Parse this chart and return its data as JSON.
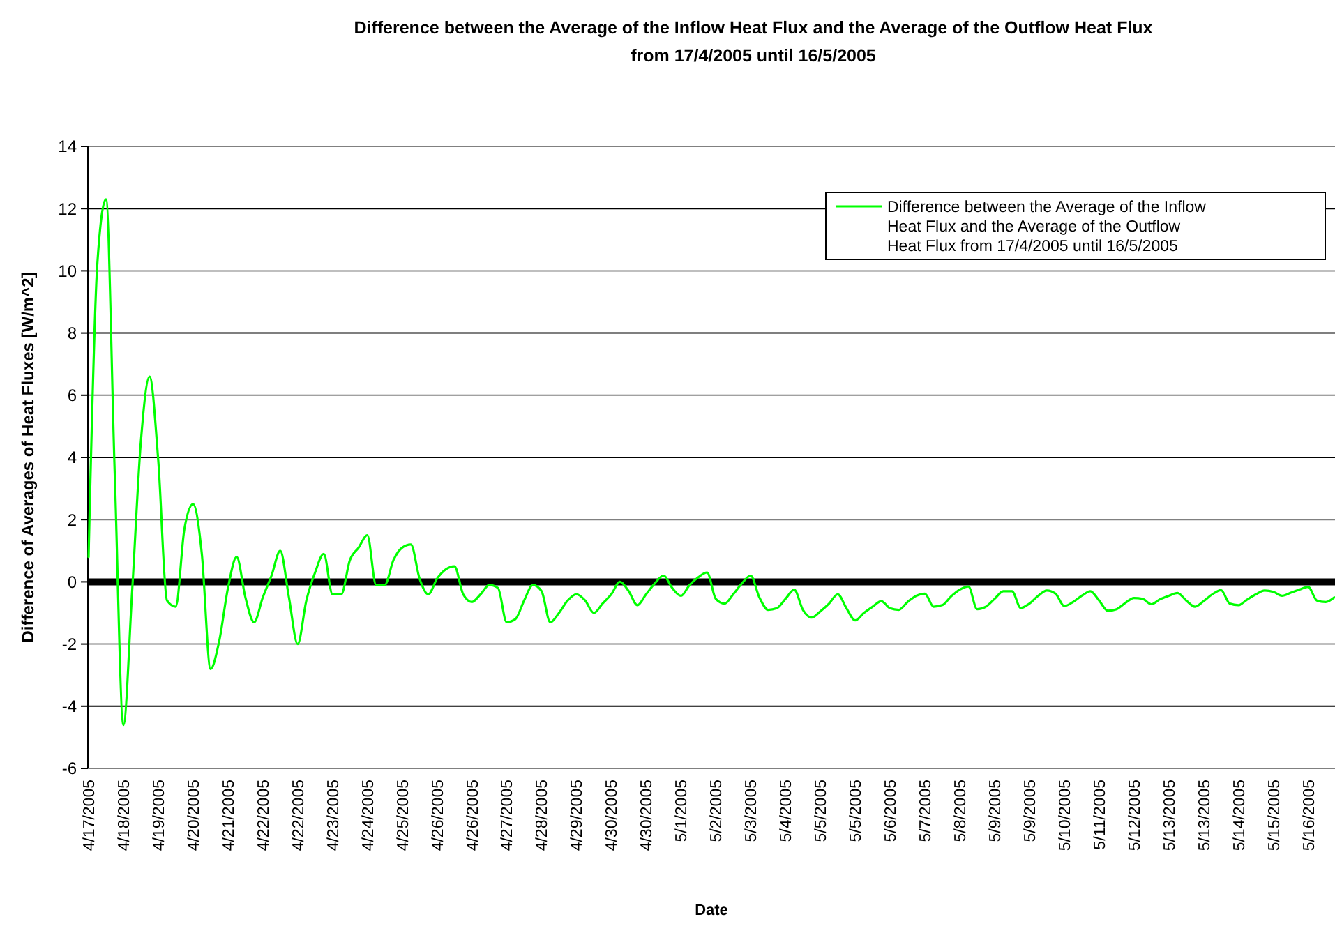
{
  "chart_data": {
    "type": "line",
    "title": "Difference between the Average of the Inflow Heat Flux and the Average of the Outflow Heat Flux from 17/4/2005 until 16/5/2005",
    "xlabel": "Date",
    "ylabel": "Difference of  Averages of Heat Fluxes [W/m^2]",
    "categories": [
      "4/17/2005",
      null,
      null,
      null,
      "4/18/2005",
      null,
      null,
      null,
      "4/19/2005",
      null,
      null,
      null,
      "4/20/2005",
      null,
      null,
      null,
      "4/21/2005",
      null,
      null,
      null,
      "4/22/2005",
      null,
      null,
      null,
      "4/22/2005",
      null,
      null,
      null,
      "4/23/2005",
      null,
      null,
      null,
      "4/24/2005",
      null,
      null,
      null,
      "4/25/2005",
      null,
      null,
      null,
      "4/26/2005",
      null,
      null,
      null,
      "4/26/2005",
      null,
      null,
      null,
      "4/27/2005",
      null,
      null,
      null,
      "4/28/2005",
      null,
      null,
      null,
      "4/29/2005",
      null,
      null,
      null,
      "4/30/2005",
      null,
      null,
      null,
      "4/30/2005",
      null,
      null,
      null,
      "5/1/2005",
      null,
      null,
      null,
      "5/2/2005",
      null,
      null,
      null,
      "5/3/2005",
      null,
      null,
      null,
      "5/4/2005",
      null,
      null,
      null,
      "5/5/2005",
      null,
      null,
      null,
      "5/5/2005",
      null,
      null,
      null,
      "5/6/2005",
      null,
      null,
      null,
      "5/7/2005",
      null,
      null,
      null,
      "5/8/2005",
      null,
      null,
      null,
      "5/9/2005",
      null,
      null,
      null,
      "5/9/2005",
      null,
      null,
      null,
      "5/10/2005",
      null,
      null,
      null,
      "5/11/2005",
      null,
      null,
      null,
      "5/12/2005",
      null,
      null,
      null,
      "5/13/2005",
      null,
      null,
      null,
      "5/13/2005",
      null,
      null,
      null,
      "5/14/2005",
      null,
      null,
      null,
      "5/15/2005",
      null,
      null,
      null,
      "5/16/2005",
      null,
      null,
      null
    ],
    "series": [
      {
        "name": "Difference between the Average of the Inflow Heat Flux and the Average of the Outflow  Heat Flux from 17/4/2005 until 16/5/2005",
        "color": "#00ff00",
        "values": [
          0.8,
          10.2,
          12.3,
          3.5,
          -4.6,
          -0.3,
          4.5,
          6.6,
          3.9,
          -0.6,
          -0.8,
          1.7,
          2.5,
          0.9,
          -2.8,
          -1.9,
          -0.2,
          0.8,
          -0.5,
          -1.3,
          -0.5,
          0.2,
          1.0,
          -0.5,
          -2.0,
          -0.6,
          0.3,
          0.9,
          -0.4,
          -0.4,
          0.7,
          1.1,
          1.5,
          -0.1,
          -0.1,
          0.7,
          1.1,
          1.2,
          0.1,
          -0.4,
          0.1,
          0.4,
          0.5,
          -0.4,
          -0.65,
          -0.4,
          -0.1,
          -0.2,
          -1.3,
          -1.2,
          -0.6,
          -0.1,
          -0.3,
          -1.3,
          -1.0,
          -0.6,
          -0.4,
          -0.6,
          -1.0,
          -0.7,
          -0.4,
          0.0,
          -0.3,
          -0.75,
          -0.4,
          -0.05,
          0.2,
          -0.2,
          -0.45,
          -0.1,
          0.15,
          0.3,
          -0.55,
          -0.7,
          -0.4,
          -0.05,
          0.2,
          -0.5,
          -0.9,
          -0.85,
          -0.55,
          -0.25,
          -0.9,
          -1.15,
          -0.95,
          -0.7,
          -0.4,
          -0.85,
          -1.24,
          -1.0,
          -0.8,
          -0.62,
          -0.85,
          -0.9,
          -0.65,
          -0.45,
          -0.38,
          -0.8,
          -0.75,
          -0.47,
          -0.25,
          -0.15,
          -0.88,
          -0.8,
          -0.55,
          -0.3,
          -0.3,
          -0.84,
          -0.7,
          -0.45,
          -0.28,
          -0.38,
          -0.78,
          -0.65,
          -0.45,
          -0.3,
          -0.6,
          -0.93,
          -0.88,
          -0.68,
          -0.52,
          -0.55,
          -0.72,
          -0.56,
          -0.45,
          -0.36,
          -0.6,
          -0.8,
          -0.62,
          -0.4,
          -0.27,
          -0.7,
          -0.75,
          -0.57,
          -0.4,
          -0.28,
          -0.32,
          -0.45,
          -0.35,
          -0.25,
          -0.16,
          -0.6,
          -0.65,
          -0.5
        ]
      }
    ],
    "ylim": [
      -6,
      14
    ],
    "yticks": [
      -6,
      -4,
      -2,
      0,
      2,
      4,
      6,
      8,
      10,
      12,
      14
    ],
    "grid": "y",
    "legend": "top right",
    "marker": "none",
    "line_style": "solid",
    "ref_lines": [
      {
        "axis": "y",
        "value": 0,
        "color": "#000000"
      }
    ]
  }
}
